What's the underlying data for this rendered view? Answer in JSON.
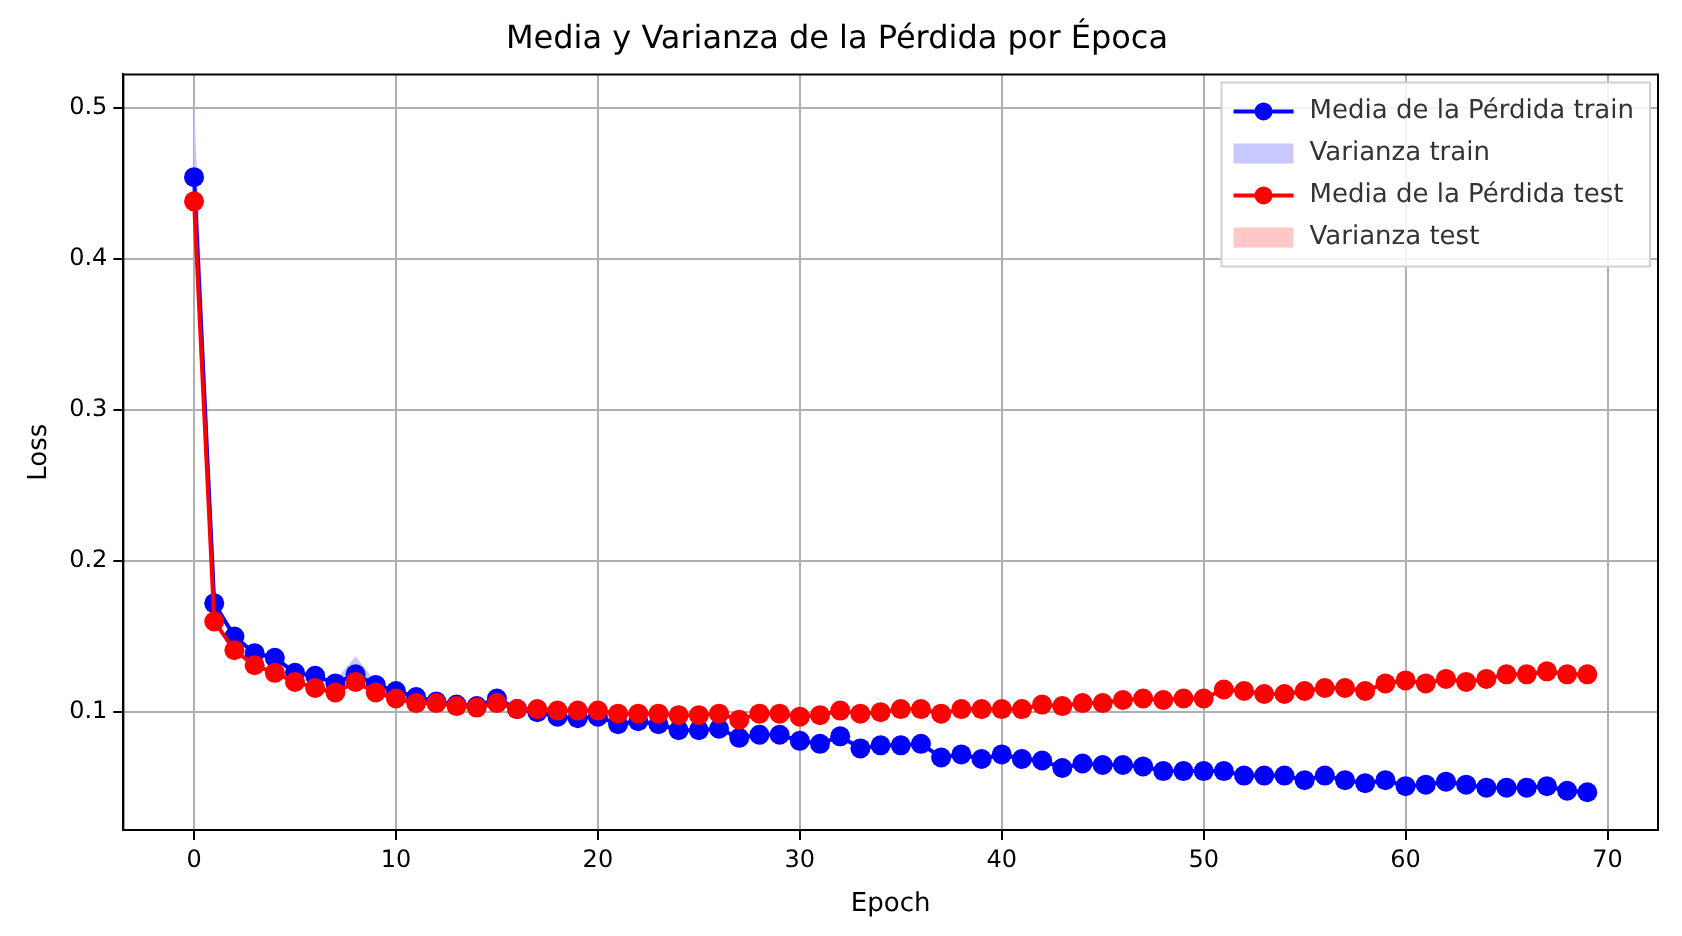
{
  "chart_data": {
    "type": "line",
    "title": "Media y Varianza de la Pérdida por Época",
    "xlabel": "Epoch",
    "ylabel": "Loss",
    "x": [
      0,
      1,
      2,
      3,
      4,
      5,
      6,
      7,
      8,
      9,
      10,
      11,
      12,
      13,
      14,
      15,
      16,
      17,
      18,
      19,
      20,
      21,
      22,
      23,
      24,
      25,
      26,
      27,
      28,
      29,
      30,
      31,
      32,
      33,
      34,
      35,
      36,
      37,
      38,
      39,
      40,
      41,
      42,
      43,
      44,
      45,
      46,
      47,
      48,
      49,
      50,
      51,
      52,
      53,
      54,
      55,
      56,
      57,
      58,
      59,
      60,
      61,
      62,
      63,
      64,
      65,
      66,
      67,
      68,
      69
    ],
    "xlim": [
      -3.5,
      72.5
    ],
    "xticks": [
      0,
      10,
      20,
      30,
      40,
      50,
      60,
      70
    ],
    "ylim": [
      0.022,
      0.522
    ],
    "yticks": [
      0.1,
      0.2,
      0.3,
      0.4,
      0.5
    ],
    "grid": true,
    "legend": "top right",
    "marker": "circle",
    "line_style": "solid",
    "series": [
      {
        "name": "Media de la Pérdida train",
        "type": "line",
        "color": "#0000ff",
        "values": [
          0.454,
          0.172,
          0.15,
          0.139,
          0.136,
          0.126,
          0.124,
          0.119,
          0.125,
          0.118,
          0.114,
          0.11,
          0.107,
          0.105,
          0.104,
          0.109,
          0.102,
          0.1,
          0.097,
          0.096,
          0.097,
          0.092,
          0.094,
          0.092,
          0.088,
          0.088,
          0.089,
          0.083,
          0.085,
          0.085,
          0.081,
          0.079,
          0.084,
          0.076,
          0.078,
          0.078,
          0.079,
          0.07,
          0.072,
          0.069,
          0.072,
          0.069,
          0.068,
          0.063,
          0.066,
          0.065,
          0.065,
          0.064,
          0.061,
          0.061,
          0.061,
          0.061,
          0.058,
          0.058,
          0.058,
          0.055,
          0.058,
          0.055,
          0.053,
          0.055,
          0.051,
          0.052,
          0.054,
          0.052,
          0.05,
          0.05,
          0.05,
          0.051,
          0.048,
          0.047
        ]
      },
      {
        "name": "Varianza train",
        "type": "area",
        "color": "#c8c8ff",
        "marker": "none",
        "values": [
          0.505,
          0.178,
          null,
          null,
          null,
          null,
          null,
          0.121,
          0.137,
          0.12,
          null,
          null,
          null,
          null,
          null,
          null,
          null,
          null,
          null,
          null,
          null,
          null,
          null,
          null,
          null,
          null,
          null,
          null,
          null,
          null,
          null,
          null,
          null,
          null,
          null,
          null,
          null,
          null,
          null,
          null,
          null,
          null,
          null,
          null,
          null,
          null,
          null,
          null,
          null,
          null,
          null,
          null,
          null,
          null,
          null,
          null,
          null,
          null,
          null,
          null,
          null,
          null,
          null,
          null,
          null,
          null,
          null,
          null,
          null,
          null
        ]
      },
      {
        "name": "Media de la Pérdida test",
        "type": "line",
        "color": "#ff0000",
        "values": [
          0.438,
          0.16,
          0.141,
          0.131,
          0.126,
          0.12,
          0.116,
          0.113,
          0.12,
          0.113,
          0.109,
          0.106,
          0.106,
          0.104,
          0.103,
          0.106,
          0.102,
          0.102,
          0.101,
          0.101,
          0.101,
          0.099,
          0.099,
          0.099,
          0.098,
          0.098,
          0.099,
          0.095,
          0.099,
          0.099,
          0.097,
          0.098,
          0.101,
          0.099,
          0.1,
          0.102,
          0.102,
          0.099,
          0.102,
          0.102,
          0.102,
          0.102,
          0.105,
          0.104,
          0.106,
          0.106,
          0.108,
          0.109,
          0.108,
          0.109,
          0.109,
          0.115,
          0.114,
          0.112,
          0.112,
          0.114,
          0.116,
          0.116,
          0.114,
          0.119,
          0.121,
          0.119,
          0.122,
          0.12,
          0.122,
          0.125,
          0.125,
          0.127,
          0.125,
          0.125
        ]
      },
      {
        "name": "Varianza test",
        "type": "area",
        "color": "#ffc8c8",
        "marker": "none",
        "values": [
          null,
          null,
          null,
          null,
          null,
          null,
          null,
          0.115,
          0.125,
          0.115,
          null,
          null,
          null,
          null,
          null,
          null,
          null,
          null,
          null,
          null,
          null,
          null,
          null,
          null,
          null,
          null,
          null,
          null,
          null,
          null,
          null,
          null,
          null,
          null,
          null,
          null,
          null,
          null,
          null,
          null,
          null,
          null,
          null,
          null,
          null,
          null,
          null,
          null,
          null,
          null,
          null,
          null,
          null,
          null,
          null,
          null,
          null,
          null,
          null,
          null,
          null,
          null,
          null,
          null,
          null,
          null,
          null,
          null,
          null,
          null
        ]
      }
    ]
  }
}
